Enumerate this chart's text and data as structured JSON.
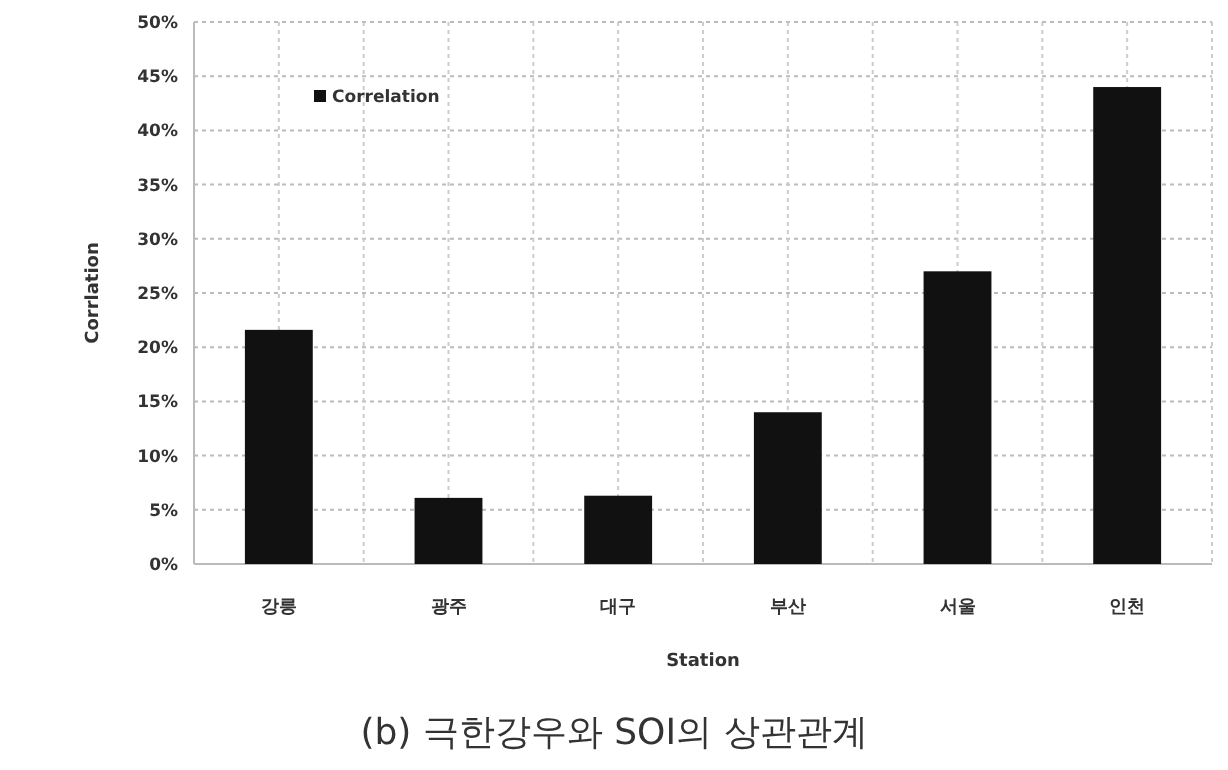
{
  "chart_data": {
    "type": "bar",
    "xlabel": "Station",
    "ylabel": "Corrlation",
    "categories": [
      "강릉",
      "광주",
      "대구",
      "부산",
      "서울",
      "인천"
    ],
    "series": [
      {
        "name": "Correlation",
        "color": "#111111",
        "values": [
          21.6,
          6.1,
          6.3,
          14,
          27,
          44
        ]
      }
    ],
    "ylim": [
      0,
      50
    ],
    "yticks": [
      {
        "value": 0,
        "label": "0%"
      },
      {
        "value": 5,
        "label": "5%"
      },
      {
        "value": 10,
        "label": "10%"
      },
      {
        "value": 15,
        "label": "15%"
      },
      {
        "value": 20,
        "label": "20%"
      },
      {
        "value": 25,
        "label": "25%"
      },
      {
        "value": 30,
        "label": "30%"
      },
      {
        "value": 35,
        "label": "35%"
      },
      {
        "value": 40,
        "label": "40%"
      },
      {
        "value": 45,
        "label": "45%"
      },
      {
        "value": 50,
        "label": "50%"
      }
    ],
    "grid": true,
    "legend": "top left",
    "annotations": [
      "(b) 극한강우와 SOI의 상관관계"
    ]
  }
}
